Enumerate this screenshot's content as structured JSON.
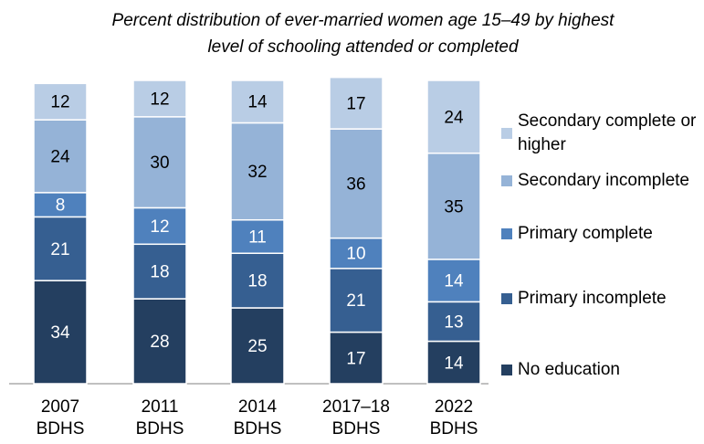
{
  "chart_data": {
    "type": "stacked_bar",
    "title": "Percent distribution of ever-married women age 15–49 by highest level of schooling attended or completed",
    "categories": [
      "2007 BDHS",
      "2011 BDHS",
      "2014 BDHS",
      "2017–18 BDHS",
      "2022 BDHS"
    ],
    "series": [
      {
        "name": "No education",
        "color": "#243f60",
        "values": [
          34,
          28,
          25,
          17,
          14
        ]
      },
      {
        "name": "Primary incomplete",
        "color": "#365f91",
        "values": [
          21,
          18,
          18,
          21,
          13
        ]
      },
      {
        "name": "Primary complete",
        "color": "#4f81bd",
        "values": [
          8,
          12,
          11,
          10,
          14
        ]
      },
      {
        "name": "Secondary incomplete",
        "color": "#95b3d7",
        "values": [
          24,
          30,
          32,
          36,
          35
        ]
      },
      {
        "name": "Secondary complete or higher",
        "color": "#b9cde5",
        "values": [
          12,
          12,
          14,
          17,
          24
        ]
      }
    ]
  }
}
